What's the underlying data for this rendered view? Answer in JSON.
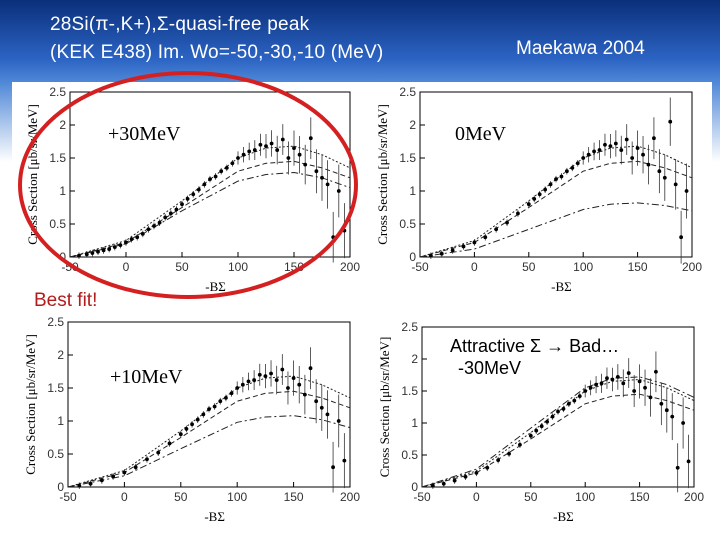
{
  "header": {
    "title_line1": "28Si(π-,K+),Σ-quasi-free peak",
    "title_line2": "(KEK E438) Im. Wo=-50,-30,-10 (MeV)",
    "credit": "Maekawa 2004"
  },
  "best_fit_label": "Best fit!",
  "colors": {
    "header_dark": "#0a2f7a",
    "header_light": "#4d86d6",
    "highlight": "#d42020",
    "best_fit": "#b41b1b"
  },
  "chart_data": [
    {
      "type": "scatter",
      "panel": "top-left",
      "annotation": "+30MeV",
      "highlighted": true,
      "xlabel": "-BΣ",
      "ylabel": "Cross Section [μb/sr/MeV]",
      "xlim": [
        -50,
        200
      ],
      "ylim": [
        0,
        2.5
      ],
      "xticks": [
        "-50",
        "0",
        "50",
        "100",
        "150",
        "200"
      ],
      "yticks": [
        "0",
        "0.5",
        "1",
        "1.5",
        "2",
        "2.5"
      ],
      "x": [
        -42,
        -35,
        -30,
        -25,
        -20,
        -15,
        -10,
        -5,
        0,
        5,
        10,
        15,
        20,
        25,
        30,
        35,
        40,
        45,
        50,
        55,
        60,
        65,
        70,
        75,
        80,
        85,
        90,
        95,
        100,
        105,
        110,
        115,
        120,
        125,
        130,
        135,
        140,
        145,
        150,
        155,
        160,
        165,
        170,
        175,
        180,
        185,
        190,
        195
      ],
      "y": [
        0.02,
        0.04,
        0.06,
        0.08,
        0.1,
        0.12,
        0.15,
        0.18,
        0.22,
        0.27,
        0.3,
        0.35,
        0.42,
        0.47,
        0.52,
        0.6,
        0.66,
        0.72,
        0.8,
        0.88,
        0.95,
        1.02,
        1.1,
        1.18,
        1.22,
        1.3,
        1.35,
        1.42,
        1.5,
        1.55,
        1.6,
        1.62,
        1.7,
        1.68,
        1.72,
        1.62,
        1.78,
        1.5,
        1.65,
        1.55,
        1.4,
        1.8,
        1.3,
        1.2,
        1.1,
        0.3,
        1.0,
        0.4
      ],
      "curves": [
        {
          "name": "upper",
          "x": [
            -50,
            0,
            50,
            100,
            125,
            150,
            175,
            200
          ],
          "y": [
            0,
            0.25,
            0.85,
            1.5,
            1.65,
            1.68,
            1.55,
            1.35
          ]
        },
        {
          "name": "middle",
          "x": [
            -50,
            0,
            50,
            100,
            125,
            150,
            175,
            200
          ],
          "y": [
            0,
            0.22,
            0.75,
            1.3,
            1.42,
            1.45,
            1.35,
            1.2
          ]
        },
        {
          "name": "lower",
          "x": [
            -50,
            0,
            50,
            100,
            125,
            150,
            175,
            200
          ],
          "y": [
            0,
            0.2,
            0.7,
            1.15,
            1.25,
            1.28,
            1.2,
            1.05
          ]
        }
      ]
    },
    {
      "type": "scatter",
      "panel": "top-right",
      "annotation": "0MeV",
      "highlighted": false,
      "xlabel": "-BΣ",
      "ylabel": "Cross Section [μb/sr/MeV]",
      "xlim": [
        -50,
        200
      ],
      "ylim": [
        0,
        2.5
      ],
      "xticks": [
        "-50",
        "0",
        "50",
        "100",
        "150",
        "200"
      ],
      "yticks": [
        "0",
        "0.5",
        "1",
        "1.5",
        "2",
        "2.5"
      ],
      "x": [
        -40,
        -30,
        -20,
        -10,
        0,
        10,
        20,
        30,
        40,
        50,
        55,
        60,
        65,
        70,
        75,
        80,
        85,
        90,
        95,
        100,
        105,
        110,
        115,
        120,
        125,
        130,
        135,
        140,
        145,
        150,
        155,
        160,
        165,
        170,
        175,
        180,
        185,
        190,
        195
      ],
      "y": [
        0.02,
        0.05,
        0.1,
        0.16,
        0.22,
        0.3,
        0.42,
        0.52,
        0.66,
        0.8,
        0.88,
        0.95,
        1.02,
        1.1,
        1.18,
        1.22,
        1.3,
        1.35,
        1.42,
        1.5,
        1.55,
        1.6,
        1.62,
        1.7,
        1.68,
        1.72,
        1.62,
        1.78,
        1.5,
        1.65,
        1.55,
        1.4,
        1.8,
        1.3,
        1.2,
        2.05,
        1.1,
        0.3,
        1.0
      ],
      "curves": [
        {
          "name": "upper",
          "x": [
            -50,
            0,
            50,
            100,
            125,
            150,
            175,
            200
          ],
          "y": [
            0,
            0.25,
            0.85,
            1.5,
            1.65,
            1.68,
            1.55,
            1.35
          ]
        },
        {
          "name": "middle",
          "x": [
            -50,
            0,
            50,
            100,
            125,
            150,
            175,
            200
          ],
          "y": [
            0,
            0.22,
            0.75,
            1.3,
            1.42,
            1.45,
            1.35,
            1.2
          ]
        },
        {
          "name": "lower",
          "x": [
            -50,
            0,
            50,
            100,
            125,
            150,
            175,
            200
          ],
          "y": [
            0,
            0.12,
            0.42,
            0.72,
            0.8,
            0.82,
            0.78,
            0.7
          ]
        }
      ]
    },
    {
      "type": "scatter",
      "panel": "bottom-left",
      "annotation": "+10MeV",
      "highlighted": false,
      "xlabel": "-BΣ",
      "ylabel": "Cross Section [μb/sr/MeV]",
      "xlim": [
        -50,
        200
      ],
      "ylim": [
        0,
        2.5
      ],
      "xticks": [
        "-50",
        "0",
        "50",
        "100",
        "150",
        "200"
      ],
      "yticks": [
        "0",
        "0.5",
        "1",
        "1.5",
        "2",
        "2.5"
      ],
      "x": [
        -40,
        -30,
        -20,
        -10,
        0,
        10,
        20,
        30,
        40,
        50,
        55,
        60,
        65,
        70,
        75,
        80,
        85,
        90,
        95,
        100,
        105,
        110,
        115,
        120,
        125,
        130,
        135,
        140,
        145,
        150,
        155,
        160,
        165,
        170,
        175,
        180,
        185,
        190,
        195
      ],
      "y": [
        0.02,
        0.05,
        0.1,
        0.16,
        0.22,
        0.3,
        0.42,
        0.52,
        0.66,
        0.8,
        0.88,
        0.95,
        1.02,
        1.1,
        1.18,
        1.22,
        1.3,
        1.35,
        1.42,
        1.5,
        1.55,
        1.6,
        1.62,
        1.7,
        1.68,
        1.72,
        1.62,
        1.78,
        1.5,
        1.65,
        1.55,
        1.4,
        1.8,
        1.3,
        1.2,
        1.1,
        0.3,
        1.0,
        0.4
      ],
      "curves": [
        {
          "name": "upper",
          "x": [
            -50,
            0,
            50,
            100,
            125,
            150,
            175,
            200
          ],
          "y": [
            0,
            0.25,
            0.85,
            1.5,
            1.65,
            1.68,
            1.55,
            1.35
          ]
        },
        {
          "name": "middle",
          "x": [
            -50,
            0,
            50,
            100,
            125,
            150,
            175,
            200
          ],
          "y": [
            0,
            0.22,
            0.75,
            1.3,
            1.42,
            1.45,
            1.35,
            1.2
          ]
        },
        {
          "name": "lower",
          "x": [
            -50,
            0,
            50,
            100,
            125,
            150,
            175,
            200
          ],
          "y": [
            0,
            0.17,
            0.58,
            0.98,
            1.06,
            1.08,
            1.02,
            0.9
          ]
        }
      ]
    },
    {
      "type": "scatter",
      "panel": "bottom-right",
      "annotation": "Attractive Σ → Bad…",
      "annotation2": "-30MeV",
      "highlighted": false,
      "xlabel": "-BΣ",
      "ylabel": "Cross Section [μb/sr/MeV]",
      "xlim": [
        -50,
        200
      ],
      "ylim": [
        0,
        2.5
      ],
      "xticks": [
        "-50",
        "0",
        "50",
        "100",
        "150",
        "200"
      ],
      "yticks": [
        "0",
        "0.5",
        "1",
        "1.5",
        "2",
        "2.5"
      ],
      "x": [
        -40,
        -30,
        -20,
        -10,
        0,
        10,
        20,
        30,
        40,
        50,
        55,
        60,
        65,
        70,
        75,
        80,
        85,
        90,
        95,
        100,
        105,
        110,
        115,
        120,
        125,
        130,
        135,
        140,
        145,
        150,
        155,
        160,
        165,
        170,
        175,
        180,
        185,
        190,
        195
      ],
      "y": [
        0.02,
        0.05,
        0.1,
        0.16,
        0.22,
        0.3,
        0.42,
        0.52,
        0.66,
        0.8,
        0.88,
        0.95,
        1.02,
        1.1,
        1.18,
        1.22,
        1.3,
        1.35,
        1.42,
        1.5,
        1.55,
        1.6,
        1.62,
        1.7,
        1.68,
        1.72,
        1.62,
        1.78,
        1.5,
        1.65,
        1.55,
        1.4,
        1.8,
        1.3,
        1.2,
        1.1,
        0.3,
        1.0,
        0.4
      ],
      "curves": [
        {
          "name": "upper",
          "x": [
            -50,
            0,
            50,
            100,
            125,
            150,
            175,
            200
          ],
          "y": [
            0,
            0.25,
            0.85,
            1.5,
            1.65,
            1.68,
            1.55,
            1.35
          ]
        },
        {
          "name": "middle",
          "x": [
            -50,
            0,
            50,
            100,
            125,
            150,
            175,
            200
          ],
          "y": [
            0,
            0.22,
            0.75,
            1.3,
            1.42,
            1.45,
            1.35,
            1.2
          ]
        },
        {
          "name": "lower",
          "x": [
            -50,
            0,
            50,
            100,
            125,
            150,
            175,
            200
          ],
          "y": [
            0,
            0.28,
            0.92,
            1.55,
            1.7,
            1.72,
            1.6,
            1.4
          ]
        }
      ]
    }
  ]
}
